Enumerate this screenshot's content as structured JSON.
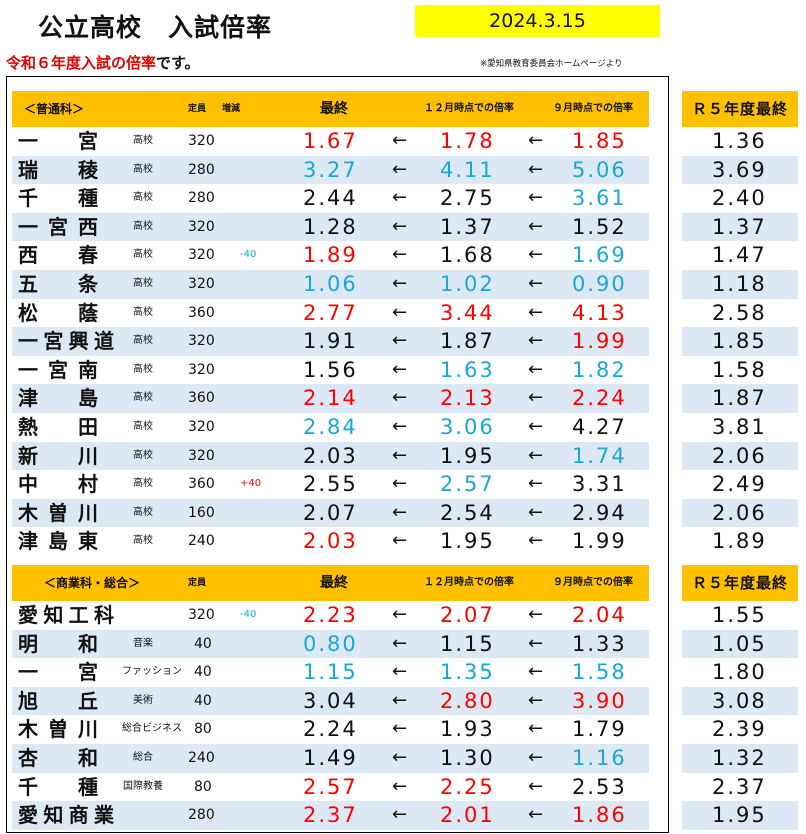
{
  "title": "公立高校　入試倍率",
  "date": "2024.3.15",
  "subtitle_prefix": "令和６年度入試の倍率",
  "subtitle_suffix": "です。",
  "source_note": "※愛知県教育委員会ホームページより",
  "arrow": "←",
  "colors": {
    "red": "#ff0000",
    "blue": "#17a7d9",
    "black": "#111111",
    "header": "#ffc000",
    "stripe": "#dde8f5",
    "date_box": "#ffff00"
  },
  "sections": [
    {
      "title": "＜普通科＞",
      "col_capacity": "定員",
      "col_change": "増減",
      "col_final": "最終",
      "col_dec": "１２月時点での倍率",
      "col_sep": "９月時点での倍率",
      "col_r5": "Ｒ５年度最終",
      "rows": [
        {
          "name": "一宮",
          "type": "高校",
          "capacity": "320",
          "change": "",
          "change_color": "black",
          "final": "1.67",
          "final_color": "red",
          "dec": "1.78",
          "dec_color": "red",
          "sep": "1.85",
          "sep_color": "red",
          "r5": "1.36"
        },
        {
          "name": "瑞稜",
          "type": "高校",
          "capacity": "280",
          "change": "",
          "change_color": "black",
          "final": "3.27",
          "final_color": "blue",
          "dec": "4.11",
          "dec_color": "blue",
          "sep": "5.06",
          "sep_color": "blue",
          "r5": "3.69"
        },
        {
          "name": "千種",
          "type": "高校",
          "capacity": "280",
          "change": "",
          "change_color": "black",
          "final": "2.44",
          "final_color": "black",
          "dec": "2.75",
          "dec_color": "black",
          "sep": "3.61",
          "sep_color": "blue",
          "r5": "2.40"
        },
        {
          "name": "一宮西",
          "type": "高校",
          "capacity": "320",
          "change": "",
          "change_color": "black",
          "final": "1.28",
          "final_color": "black",
          "dec": "1.37",
          "dec_color": "black",
          "sep": "1.52",
          "sep_color": "black",
          "r5": "1.37"
        },
        {
          "name": "西春",
          "type": "高校",
          "capacity": "320",
          "change": "-40",
          "change_color": "blue",
          "final": "1.89",
          "final_color": "red",
          "dec": "1.68",
          "dec_color": "black",
          "sep": "1.69",
          "sep_color": "blue",
          "r5": "1.47"
        },
        {
          "name": "五条",
          "type": "高校",
          "capacity": "320",
          "change": "",
          "change_color": "black",
          "final": "1.06",
          "final_color": "blue",
          "dec": "1.02",
          "dec_color": "blue",
          "sep": "0.90",
          "sep_color": "blue",
          "r5": "1.18"
        },
        {
          "name": "松蔭",
          "type": "高校",
          "capacity": "360",
          "change": "",
          "change_color": "black",
          "final": "2.77",
          "final_color": "red",
          "dec": "3.44",
          "dec_color": "red",
          "sep": "4.13",
          "sep_color": "red",
          "r5": "2.58"
        },
        {
          "name": "一宮興道",
          "type": "高校",
          "capacity": "320",
          "change": "",
          "change_color": "black",
          "final": "1.91",
          "final_color": "black",
          "dec": "1.87",
          "dec_color": "black",
          "sep": "1.99",
          "sep_color": "red",
          "r5": "1.85"
        },
        {
          "name": "一宮南",
          "type": "高校",
          "capacity": "320",
          "change": "",
          "change_color": "black",
          "final": "1.56",
          "final_color": "black",
          "dec": "1.63",
          "dec_color": "blue",
          "sep": "1.82",
          "sep_color": "blue",
          "r5": "1.58"
        },
        {
          "name": "津島",
          "type": "高校",
          "capacity": "360",
          "change": "",
          "change_color": "black",
          "final": "2.14",
          "final_color": "red",
          "dec": "2.13",
          "dec_color": "red",
          "sep": "2.24",
          "sep_color": "red",
          "r5": "1.87"
        },
        {
          "name": "熱田",
          "type": "高校",
          "capacity": "320",
          "change": "",
          "change_color": "black",
          "final": "2.84",
          "final_color": "blue",
          "dec": "3.06",
          "dec_color": "blue",
          "sep": "4.27",
          "sep_color": "black",
          "r5": "3.81"
        },
        {
          "name": "新川",
          "type": "高校",
          "capacity": "320",
          "change": "",
          "change_color": "black",
          "final": "2.03",
          "final_color": "black",
          "dec": "1.95",
          "dec_color": "black",
          "sep": "1.74",
          "sep_color": "blue",
          "r5": "2.06"
        },
        {
          "name": "中村",
          "type": "高校",
          "capacity": "360",
          "change": "+40",
          "change_color": "red",
          "final": "2.55",
          "final_color": "black",
          "dec": "2.57",
          "dec_color": "blue",
          "sep": "3.31",
          "sep_color": "black",
          "r5": "2.49"
        },
        {
          "name": "木曽川",
          "type": "高校",
          "capacity": "160",
          "change": "",
          "change_color": "black",
          "final": "2.07",
          "final_color": "black",
          "dec": "2.54",
          "dec_color": "black",
          "sep": "2.94",
          "sep_color": "black",
          "r5": "2.06"
        },
        {
          "name": "津島東",
          "type": "高校",
          "capacity": "240",
          "change": "",
          "change_color": "black",
          "final": "2.03",
          "final_color": "red",
          "dec": "1.95",
          "dec_color": "black",
          "sep": "1.99",
          "sep_color": "black",
          "r5": "1.89"
        }
      ]
    },
    {
      "title": "＜商業科・総合＞",
      "col_capacity": "定員",
      "col_change": "",
      "col_final": "最終",
      "col_dec": "１２月時点での倍率",
      "col_sep": "９月時点での倍率",
      "col_r5": "Ｒ５年度最終",
      "rows": [
        {
          "name": "愛知工科",
          "type": "",
          "capacity": "320",
          "change": "-40",
          "change_color": "blue",
          "final": "2.23",
          "final_color": "red",
          "dec": "2.07",
          "dec_color": "red",
          "sep": "2.04",
          "sep_color": "red",
          "r5": "1.55"
        },
        {
          "name": "明和",
          "type": "音楽",
          "capacity": "40",
          "change": "",
          "change_color": "black",
          "final": "0.80",
          "final_color": "blue",
          "dec": "1.15",
          "dec_color": "black",
          "sep": "1.33",
          "sep_color": "black",
          "r5": "1.05"
        },
        {
          "name": "一宮",
          "type": "ファッション",
          "capacity": "40",
          "change": "",
          "change_color": "black",
          "final": "1.15",
          "final_color": "blue",
          "dec": "1.35",
          "dec_color": "blue",
          "sep": "1.58",
          "sep_color": "blue",
          "r5": "1.80"
        },
        {
          "name": "旭丘",
          "type": "美術",
          "capacity": "40",
          "change": "",
          "change_color": "black",
          "final": "3.04",
          "final_color": "black",
          "dec": "2.80",
          "dec_color": "red",
          "sep": "3.90",
          "sep_color": "red",
          "r5": "3.08"
        },
        {
          "name": "木曽川",
          "type": "総合ビジネス",
          "capacity": "80",
          "change": "",
          "change_color": "black",
          "final": "2.24",
          "final_color": "black",
          "dec": "1.93",
          "dec_color": "black",
          "sep": "1.79",
          "sep_color": "black",
          "r5": "2.39"
        },
        {
          "name": "杏和",
          "type": "総合",
          "capacity": "240",
          "change": "",
          "change_color": "black",
          "final": "1.49",
          "final_color": "black",
          "dec": "1.30",
          "dec_color": "black",
          "sep": "1.16",
          "sep_color": "blue",
          "r5": "1.32"
        },
        {
          "name": "千種",
          "type": "国際教養",
          "capacity": "80",
          "change": "",
          "change_color": "black",
          "final": "2.57",
          "final_color": "red",
          "dec": "2.25",
          "dec_color": "red",
          "sep": "2.53",
          "sep_color": "black",
          "r5": "2.37"
        },
        {
          "name": "愛知商業",
          "type": "",
          "capacity": "280",
          "change": "",
          "change_color": "black",
          "final": "2.37",
          "final_color": "red",
          "dec": "2.01",
          "dec_color": "red",
          "sep": "1.86",
          "sep_color": "red",
          "r5": "1.95"
        }
      ]
    }
  ]
}
